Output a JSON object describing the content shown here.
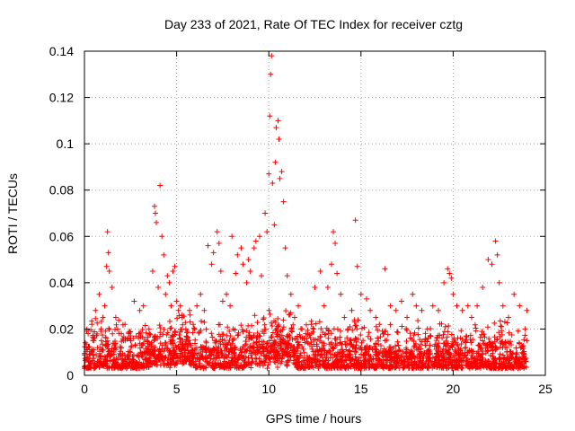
{
  "chart_data": {
    "type": "scatter",
    "title": "Day 233 of 2021, Rate Of TEC Index for receiver cztg",
    "xlabel": "GPS time / hours",
    "ylabel": "ROTI / TECUs",
    "xlim": [
      0,
      25
    ],
    "ylim": [
      0,
      0.14
    ],
    "x_ticks": [
      0,
      5,
      10,
      15,
      20,
      25
    ],
    "x_tick_labels": [
      "0",
      "5",
      "10",
      "15",
      "20",
      "25"
    ],
    "y_ticks": [
      0,
      0.02,
      0.04,
      0.06,
      0.08,
      0.1,
      0.12,
      0.14
    ],
    "y_tick_labels": [
      "0",
      "0.02",
      "0.04",
      "0.06",
      "0.08",
      "0.1",
      "0.12",
      "0.14"
    ],
    "grid": true,
    "legend": "none",
    "marker": "plus",
    "color": "#ff0000",
    "series": [
      {
        "x": [
          0.1,
          0.2,
          0.3,
          0.4,
          0.5,
          0.6,
          0.8,
          0.9,
          1.0,
          1.1,
          1.2,
          1.25,
          1.3,
          1.35,
          1.5,
          1.7,
          1.8,
          2.0,
          2.2,
          2.5,
          2.7,
          3.0,
          3.2,
          3.5,
          3.7,
          3.8,
          3.85,
          3.9,
          4.0,
          4.1,
          4.2,
          4.3,
          4.4,
          4.5,
          4.6,
          4.7,
          4.8,
          4.9,
          5.0,
          5.1,
          5.2,
          5.3,
          5.5,
          5.7,
          5.9,
          6.1,
          6.3,
          6.5,
          6.7,
          6.9,
          7.0,
          7.2,
          7.3,
          7.4,
          7.5,
          7.7,
          7.9,
          8.0,
          8.2,
          8.3,
          8.5,
          8.6,
          8.8,
          8.9,
          9.0,
          9.2,
          9.3,
          9.5,
          9.6,
          9.8,
          9.9,
          10.0,
          10.05,
          10.1,
          10.15,
          10.2,
          10.3,
          10.35,
          10.4,
          10.5,
          10.55,
          10.6,
          10.7,
          10.8,
          10.9,
          11.0,
          11.2,
          11.4,
          11.6,
          11.8,
          12.0,
          12.3,
          12.5,
          12.8,
          13.0,
          13.2,
          13.4,
          13.5,
          13.6,
          13.7,
          13.9,
          14.1,
          14.3,
          14.5,
          14.7,
          14.8,
          15.0,
          15.3,
          15.5,
          15.8,
          16.0,
          16.3,
          16.6,
          16.9,
          17.2,
          17.5,
          17.8,
          18.0,
          18.3,
          18.6,
          18.9,
          19.2,
          19.5,
          19.7,
          19.8,
          19.9,
          20.0,
          20.2,
          20.5,
          20.8,
          21.0,
          21.3,
          21.6,
          21.9,
          22.1,
          22.3,
          22.4,
          22.5,
          22.7,
          23.0,
          23.3,
          23.6,
          23.9,
          24.0
        ],
        "y": [
          0.012,
          0.018,
          0.009,
          0.022,
          0.015,
          0.028,
          0.035,
          0.02,
          0.025,
          0.03,
          0.047,
          0.062,
          0.053,
          0.045,
          0.038,
          0.025,
          0.02,
          0.018,
          0.022,
          0.015,
          0.032,
          0.028,
          0.03,
          0.02,
          0.045,
          0.073,
          0.07,
          0.066,
          0.038,
          0.082,
          0.06,
          0.052,
          0.035,
          0.043,
          0.04,
          0.03,
          0.045,
          0.047,
          0.032,
          0.028,
          0.03,
          0.025,
          0.02,
          0.028,
          0.022,
          0.03,
          0.035,
          0.028,
          0.056,
          0.048,
          0.053,
          0.062,
          0.057,
          0.045,
          0.032,
          0.035,
          0.03,
          0.06,
          0.044,
          0.052,
          0.055,
          0.048,
          0.04,
          0.05,
          0.045,
          0.055,
          0.058,
          0.06,
          0.043,
          0.07,
          0.062,
          0.087,
          0.112,
          0.13,
          0.138,
          0.083,
          0.065,
          0.092,
          0.107,
          0.11,
          0.102,
          0.085,
          0.088,
          0.075,
          0.055,
          0.043,
          0.035,
          0.025,
          0.03,
          0.02,
          0.018,
          0.022,
          0.038,
          0.045,
          0.03,
          0.038,
          0.048,
          0.062,
          0.057,
          0.044,
          0.035,
          0.025,
          0.02,
          0.028,
          0.067,
          0.047,
          0.035,
          0.033,
          0.028,
          0.025,
          0.022,
          0.046,
          0.03,
          0.028,
          0.032,
          0.025,
          0.035,
          0.03,
          0.028,
          0.02,
          0.03,
          0.028,
          0.04,
          0.046,
          0.044,
          0.042,
          0.035,
          0.03,
          0.028,
          0.03,
          0.025,
          0.03,
          0.038,
          0.05,
          0.048,
          0.058,
          0.052,
          0.04,
          0.03,
          0.025,
          0.035,
          0.03,
          0.02,
          0.028
        ]
      }
    ]
  }
}
